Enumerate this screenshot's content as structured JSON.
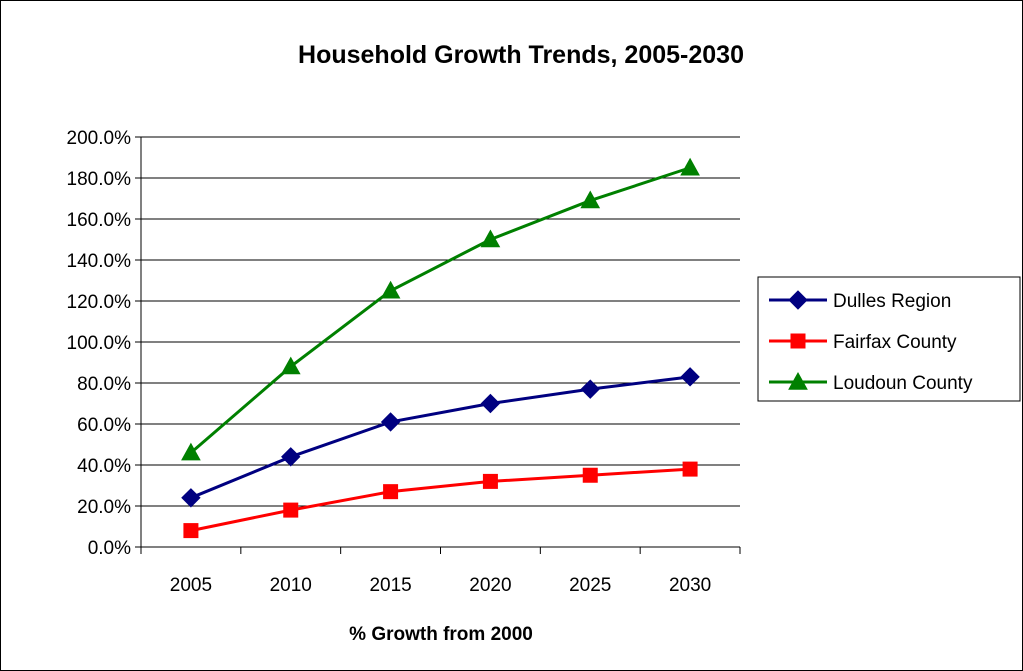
{
  "chart_data": {
    "type": "line",
    "title": "Household Growth Trends, 2005-2030",
    "xlabel": "% Growth from 2000",
    "ylabel": "",
    "categories": [
      "2005",
      "2010",
      "2015",
      "2020",
      "2025",
      "2030"
    ],
    "y_tick_labels": [
      "0.0%",
      "20.0%",
      "40.0%",
      "60.0%",
      "80.0%",
      "100.0%",
      "120.0%",
      "140.0%",
      "160.0%",
      "180.0%",
      "200.0%"
    ],
    "ylim": [
      0,
      200
    ],
    "ystep": 20,
    "grid": true,
    "legend_position": "right",
    "series": [
      {
        "name": "Dulles Region",
        "values": [
          24,
          44,
          61,
          70,
          77,
          83
        ],
        "color": "#000080",
        "marker": "diamond"
      },
      {
        "name": "Fairfax County",
        "values": [
          8,
          18,
          27,
          32,
          35,
          38
        ],
        "color": "#ff0000",
        "marker": "square"
      },
      {
        "name": "Loudoun County",
        "values": [
          46,
          88,
          125,
          150,
          169,
          185
        ],
        "color": "#008000",
        "marker": "triangle"
      }
    ]
  }
}
